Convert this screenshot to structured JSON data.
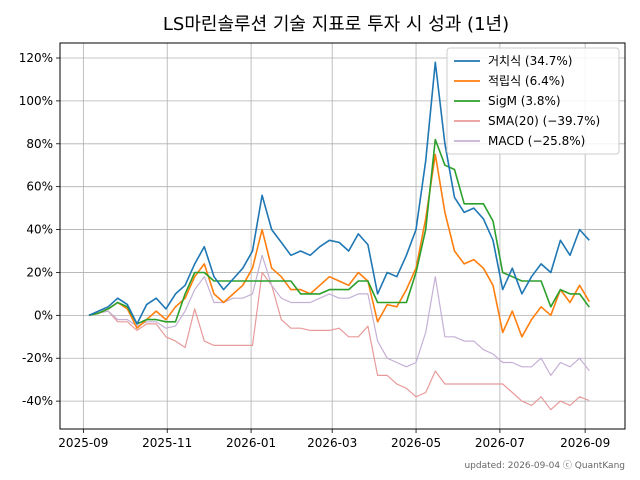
{
  "chart_data": {
    "type": "line",
    "title": "LS마린솔루션 기술 지표로 투자 시 성과 (1년)",
    "xlabel": "",
    "ylabel": "",
    "footer": "updated: 2026-09-04 ⓒ QuantKang",
    "x_ticks": [
      "2025-09",
      "2025-11",
      "2026-01",
      "2026-03",
      "2026-05",
      "2026-07",
      "2026-09"
    ],
    "y_ticks": [
      "-40%",
      "-20%",
      "0%",
      "20%",
      "40%",
      "60%",
      "80%",
      "100%",
      "120%"
    ],
    "y_tick_values": [
      -40,
      -20,
      0,
      20,
      40,
      60,
      80,
      100,
      120
    ],
    "ylim": [
      -53,
      127
    ],
    "xlim": [
      "2025-08-15",
      "2026-09-30"
    ],
    "grid": true,
    "legend_position": "top-right",
    "series": [
      {
        "name": "거치식 (34.7%)",
        "color": "#1f77b4",
        "points": [
          [
            "2025-09-05",
            0
          ],
          [
            "2025-09-12",
            2
          ],
          [
            "2025-09-19",
            4
          ],
          [
            "2025-09-26",
            8
          ],
          [
            "2025-10-03",
            5
          ],
          [
            "2025-10-10",
            -4
          ],
          [
            "2025-10-17",
            5
          ],
          [
            "2025-10-24",
            8
          ],
          [
            "2025-10-31",
            3
          ],
          [
            "2025-11-07",
            10
          ],
          [
            "2025-11-14",
            14
          ],
          [
            "2025-11-21",
            24
          ],
          [
            "2025-11-28",
            32
          ],
          [
            "2025-12-05",
            18
          ],
          [
            "2025-12-12",
            12
          ],
          [
            "2025-12-19",
            17
          ],
          [
            "2025-12-26",
            22
          ],
          [
            "2026-01-02",
            30
          ],
          [
            "2026-01-09",
            56
          ],
          [
            "2026-01-16",
            40
          ],
          [
            "2026-01-23",
            34
          ],
          [
            "2026-01-30",
            28
          ],
          [
            "2026-02-06",
            30
          ],
          [
            "2026-02-13",
            28
          ],
          [
            "2026-02-20",
            32
          ],
          [
            "2026-02-27",
            35
          ],
          [
            "2026-03-06",
            34
          ],
          [
            "2026-03-13",
            30
          ],
          [
            "2026-03-20",
            38
          ],
          [
            "2026-03-27",
            33
          ],
          [
            "2026-04-03",
            10
          ],
          [
            "2026-04-10",
            20
          ],
          [
            "2026-04-17",
            18
          ],
          [
            "2026-04-24",
            28
          ],
          [
            "2026-05-01",
            40
          ],
          [
            "2026-05-08",
            72
          ],
          [
            "2026-05-15",
            118
          ],
          [
            "2026-05-22",
            80
          ],
          [
            "2026-05-29",
            55
          ],
          [
            "2026-06-05",
            48
          ],
          [
            "2026-06-12",
            50
          ],
          [
            "2026-06-19",
            45
          ],
          [
            "2026-06-26",
            35
          ],
          [
            "2026-07-03",
            12
          ],
          [
            "2026-07-10",
            22
          ],
          [
            "2026-07-17",
            10
          ],
          [
            "2026-07-24",
            18
          ],
          [
            "2026-07-31",
            24
          ],
          [
            "2026-08-07",
            20
          ],
          [
            "2026-08-14",
            35
          ],
          [
            "2026-08-21",
            28
          ],
          [
            "2026-08-28",
            40
          ],
          [
            "2026-09-04",
            35
          ]
        ]
      },
      {
        "name": "적립식 (6.4%)",
        "color": "#ff7f0e",
        "points": [
          [
            "2025-09-05",
            0
          ],
          [
            "2025-09-12",
            1
          ],
          [
            "2025-09-19",
            3
          ],
          [
            "2025-09-26",
            6
          ],
          [
            "2025-10-03",
            3
          ],
          [
            "2025-10-10",
            -6
          ],
          [
            "2025-10-17",
            -2
          ],
          [
            "2025-10-24",
            2
          ],
          [
            "2025-10-31",
            -2
          ],
          [
            "2025-11-07",
            4
          ],
          [
            "2025-11-14",
            8
          ],
          [
            "2025-11-21",
            18
          ],
          [
            "2025-11-28",
            24
          ],
          [
            "2025-12-05",
            10
          ],
          [
            "2025-12-12",
            6
          ],
          [
            "2025-12-19",
            10
          ],
          [
            "2025-12-26",
            14
          ],
          [
            "2026-01-02",
            22
          ],
          [
            "2026-01-09",
            40
          ],
          [
            "2026-01-16",
            22
          ],
          [
            "2026-01-23",
            18
          ],
          [
            "2026-01-30",
            12
          ],
          [
            "2026-02-06",
            12
          ],
          [
            "2026-02-13",
            10
          ],
          [
            "2026-02-20",
            14
          ],
          [
            "2026-02-27",
            18
          ],
          [
            "2026-03-06",
            16
          ],
          [
            "2026-03-13",
            14
          ],
          [
            "2026-03-20",
            20
          ],
          [
            "2026-03-27",
            16
          ],
          [
            "2026-04-03",
            -3
          ],
          [
            "2026-04-10",
            5
          ],
          [
            "2026-04-17",
            4
          ],
          [
            "2026-04-24",
            12
          ],
          [
            "2026-05-01",
            22
          ],
          [
            "2026-05-08",
            45
          ],
          [
            "2026-05-15",
            75
          ],
          [
            "2026-05-22",
            48
          ],
          [
            "2026-05-29",
            30
          ],
          [
            "2026-06-05",
            24
          ],
          [
            "2026-06-12",
            26
          ],
          [
            "2026-06-19",
            22
          ],
          [
            "2026-06-26",
            14
          ],
          [
            "2026-07-03",
            -8
          ],
          [
            "2026-07-10",
            2
          ],
          [
            "2026-07-17",
            -10
          ],
          [
            "2026-07-24",
            -2
          ],
          [
            "2026-07-31",
            4
          ],
          [
            "2026-08-07",
            0
          ],
          [
            "2026-08-14",
            12
          ],
          [
            "2026-08-21",
            6
          ],
          [
            "2026-08-28",
            14
          ],
          [
            "2026-09-04",
            6.4
          ]
        ]
      },
      {
        "name": "SigM (3.8%)",
        "color": "#2ca02c",
        "points": [
          [
            "2025-09-05",
            0
          ],
          [
            "2025-09-12",
            1
          ],
          [
            "2025-09-19",
            3
          ],
          [
            "2025-09-26",
            6
          ],
          [
            "2025-10-03",
            4
          ],
          [
            "2025-10-10",
            -4
          ],
          [
            "2025-10-17",
            -2
          ],
          [
            "2025-10-24",
            -2
          ],
          [
            "2025-10-31",
            -3
          ],
          [
            "2025-11-07",
            -3
          ],
          [
            "2025-11-14",
            10
          ],
          [
            "2025-11-21",
            20
          ],
          [
            "2025-11-28",
            20
          ],
          [
            "2025-12-05",
            16
          ],
          [
            "2025-12-12",
            16
          ],
          [
            "2025-12-19",
            16
          ],
          [
            "2025-12-26",
            16
          ],
          [
            "2026-01-02",
            16
          ],
          [
            "2026-01-09",
            16
          ],
          [
            "2026-01-16",
            16
          ],
          [
            "2026-01-23",
            16
          ],
          [
            "2026-01-30",
            16
          ],
          [
            "2026-02-06",
            10
          ],
          [
            "2026-02-13",
            10
          ],
          [
            "2026-02-20",
            10
          ],
          [
            "2026-02-27",
            12
          ],
          [
            "2026-03-06",
            12
          ],
          [
            "2026-03-13",
            12
          ],
          [
            "2026-03-20",
            16
          ],
          [
            "2026-03-27",
            16
          ],
          [
            "2026-04-03",
            6
          ],
          [
            "2026-04-10",
            6
          ],
          [
            "2026-04-17",
            6
          ],
          [
            "2026-04-24",
            6
          ],
          [
            "2026-05-01",
            20
          ],
          [
            "2026-05-08",
            40
          ],
          [
            "2026-05-15",
            82
          ],
          [
            "2026-05-22",
            70
          ],
          [
            "2026-05-29",
            68
          ],
          [
            "2026-06-05",
            52
          ],
          [
            "2026-06-12",
            52
          ],
          [
            "2026-06-19",
            52
          ],
          [
            "2026-06-26",
            44
          ],
          [
            "2026-07-03",
            20
          ],
          [
            "2026-07-10",
            18
          ],
          [
            "2026-07-17",
            16
          ],
          [
            "2026-07-24",
            16
          ],
          [
            "2026-07-31",
            16
          ],
          [
            "2026-08-07",
            4
          ],
          [
            "2026-08-14",
            12
          ],
          [
            "2026-08-21",
            10
          ],
          [
            "2026-08-28",
            10
          ],
          [
            "2026-09-04",
            3.8
          ]
        ]
      },
      {
        "name": "SMA(20) (−39.7%)",
        "color": "#e89a9a",
        "points": [
          [
            "2025-09-05",
            0
          ],
          [
            "2025-09-12",
            1
          ],
          [
            "2025-09-19",
            2
          ],
          [
            "2025-09-26",
            -3
          ],
          [
            "2025-10-03",
            -3
          ],
          [
            "2025-10-10",
            -7
          ],
          [
            "2025-10-17",
            -4
          ],
          [
            "2025-10-24",
            -4
          ],
          [
            "2025-10-31",
            -10
          ],
          [
            "2025-11-07",
            -12
          ],
          [
            "2025-11-14",
            -15
          ],
          [
            "2025-11-21",
            3
          ],
          [
            "2025-11-28",
            -12
          ],
          [
            "2025-12-05",
            -14
          ],
          [
            "2025-12-12",
            -14
          ],
          [
            "2025-12-19",
            -14
          ],
          [
            "2025-12-26",
            -14
          ],
          [
            "2026-01-02",
            -14
          ],
          [
            "2026-01-09",
            20
          ],
          [
            "2026-01-16",
            14
          ],
          [
            "2026-01-23",
            -2
          ],
          [
            "2026-01-30",
            -6
          ],
          [
            "2026-02-06",
            -6
          ],
          [
            "2026-02-13",
            -7
          ],
          [
            "2026-02-20",
            -7
          ],
          [
            "2026-02-27",
            -7
          ],
          [
            "2026-03-06",
            -6
          ],
          [
            "2026-03-13",
            -10
          ],
          [
            "2026-03-20",
            -10
          ],
          [
            "2026-03-27",
            -5
          ],
          [
            "2026-04-03",
            -28
          ],
          [
            "2026-04-10",
            -28
          ],
          [
            "2026-04-17",
            -32
          ],
          [
            "2026-04-24",
            -34
          ],
          [
            "2026-05-01",
            -38
          ],
          [
            "2026-05-08",
            -36
          ],
          [
            "2026-05-15",
            -26
          ],
          [
            "2026-05-22",
            -32
          ],
          [
            "2026-05-29",
            -32
          ],
          [
            "2026-06-05",
            -32
          ],
          [
            "2026-06-12",
            -32
          ],
          [
            "2026-06-19",
            -32
          ],
          [
            "2026-06-26",
            -32
          ],
          [
            "2026-07-03",
            -32
          ],
          [
            "2026-07-10",
            -36
          ],
          [
            "2026-07-17",
            -40
          ],
          [
            "2026-07-24",
            -42
          ],
          [
            "2026-07-31",
            -38
          ],
          [
            "2026-08-07",
            -44
          ],
          [
            "2026-08-14",
            -40
          ],
          [
            "2026-08-21",
            -42
          ],
          [
            "2026-08-28",
            -38
          ],
          [
            "2026-09-04",
            -39.7
          ]
        ]
      },
      {
        "name": "MACD (−25.8%)",
        "color": "#c5b0d5",
        "points": [
          [
            "2025-09-05",
            0
          ],
          [
            "2025-09-12",
            1
          ],
          [
            "2025-09-19",
            2
          ],
          [
            "2025-09-26",
            -2
          ],
          [
            "2025-10-03",
            -2
          ],
          [
            "2025-10-10",
            -5
          ],
          [
            "2025-10-17",
            -3
          ],
          [
            "2025-10-24",
            -3
          ],
          [
            "2025-10-31",
            -6
          ],
          [
            "2025-11-07",
            -5
          ],
          [
            "2025-11-14",
            2
          ],
          [
            "2025-11-21",
            12
          ],
          [
            "2025-11-28",
            18
          ],
          [
            "2025-12-05",
            6
          ],
          [
            "2025-12-12",
            6
          ],
          [
            "2025-12-19",
            8
          ],
          [
            "2025-12-26",
            8
          ],
          [
            "2026-01-02",
            10
          ],
          [
            "2026-01-09",
            28
          ],
          [
            "2026-01-16",
            14
          ],
          [
            "2026-01-23",
            8
          ],
          [
            "2026-01-30",
            6
          ],
          [
            "2026-02-06",
            6
          ],
          [
            "2026-02-13",
            6
          ],
          [
            "2026-02-20",
            8
          ],
          [
            "2026-02-27",
            10
          ],
          [
            "2026-03-06",
            8
          ],
          [
            "2026-03-13",
            8
          ],
          [
            "2026-03-20",
            10
          ],
          [
            "2026-03-27",
            10
          ],
          [
            "2026-04-03",
            -12
          ],
          [
            "2026-04-10",
            -20
          ],
          [
            "2026-04-17",
            -22
          ],
          [
            "2026-04-24",
            -24
          ],
          [
            "2026-05-01",
            -22
          ],
          [
            "2026-05-08",
            -8
          ],
          [
            "2026-05-15",
            18
          ],
          [
            "2026-05-22",
            -10
          ],
          [
            "2026-05-29",
            -10
          ],
          [
            "2026-06-05",
            -12
          ],
          [
            "2026-06-12",
            -12
          ],
          [
            "2026-06-19",
            -16
          ],
          [
            "2026-06-26",
            -18
          ],
          [
            "2026-07-03",
            -22
          ],
          [
            "2026-07-10",
            -22
          ],
          [
            "2026-07-17",
            -24
          ],
          [
            "2026-07-24",
            -24
          ],
          [
            "2026-07-31",
            -20
          ],
          [
            "2026-08-07",
            -28
          ],
          [
            "2026-08-14",
            -22
          ],
          [
            "2026-08-21",
            -24
          ],
          [
            "2026-08-28",
            -20
          ],
          [
            "2026-09-04",
            -25.8
          ]
        ]
      }
    ]
  }
}
